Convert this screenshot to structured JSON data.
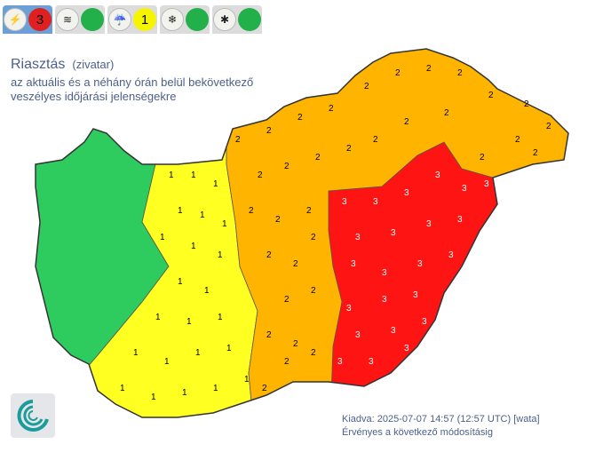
{
  "tabs": [
    {
      "icon": "thunderstorm-icon",
      "glyph": "⚡",
      "level": "3",
      "color": "#e02020",
      "active": true
    },
    {
      "icon": "wind-icon",
      "glyph": "≋",
      "level": "",
      "color": "#22b04a",
      "active": false
    },
    {
      "icon": "rain-icon",
      "glyph": "☔",
      "level": "1",
      "color": "#f5f500",
      "active": false
    },
    {
      "icon": "snow-drift-icon",
      "glyph": "❄",
      "level": "",
      "color": "#22b04a",
      "active": false
    },
    {
      "icon": "ice-icon",
      "glyph": "✱",
      "level": "",
      "color": "#22b04a",
      "active": false
    }
  ],
  "header": {
    "title": "Riasztás",
    "subtitle": "(zivatar)",
    "desc1": "az aktuális és a néhány órán belül bekövetkező",
    "desc2": "veszélyes időjárási jelenségekre"
  },
  "legend_colors": {
    "0": "#2ecc5e",
    "1": "#ffff22",
    "2": "#ffb400",
    "3": "#ff1414"
  },
  "regions": [
    {
      "name": "west",
      "level": "0"
    },
    {
      "name": "center-west",
      "level": "1"
    },
    {
      "name": "center-east",
      "level": "2"
    },
    {
      "name": "east",
      "level": "3"
    }
  ],
  "footer": {
    "issued": "Kiadva: 2025-07-07 14:57 (12:57 UTC) [wata]",
    "valid": "Érvényes a következő módosításig"
  }
}
